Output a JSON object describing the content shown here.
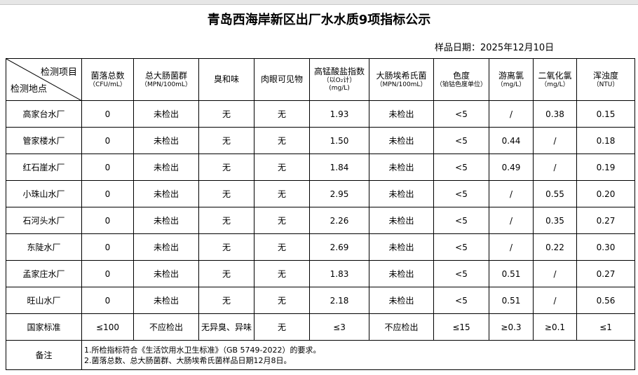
{
  "title": "青岛西海岸新区出厂水水质9项指标公示",
  "sample_date": "样品日期：2025年12月10日",
  "header": {
    "corner_top": "检测项目",
    "corner_bottom": "检测地点",
    "columns": [
      {
        "lines": [
          "菌落总数",
          "（CFU/mL）"
        ]
      },
      {
        "lines": [
          "总大肠菌群",
          "（MPN/100mL）"
        ]
      },
      {
        "lines": [
          "臭和味"
        ]
      },
      {
        "lines": [
          "肉眼可见物"
        ]
      },
      {
        "lines": [
          "高锰酸盐指数",
          "（以O₂计）",
          "(mg/L)"
        ]
      },
      {
        "lines": [
          "大肠埃希氏菌",
          "（MPN/100mL）"
        ]
      },
      {
        "lines": [
          "色度",
          "（铂钴色度单位）"
        ]
      },
      {
        "lines": [
          "游离氯",
          "（mg/L）"
        ]
      },
      {
        "lines": [
          "二氧化氯",
          "（mg/L）"
        ]
      },
      {
        "lines": [
          "浑浊度",
          "（NTU）"
        ]
      }
    ]
  },
  "table": {
    "rows": [
      [
        "高家台水厂",
        "0",
        "未检出",
        "无",
        "无",
        "1.93",
        "未检出",
        "<5",
        "/",
        "0.38",
        "0.15"
      ],
      [
        "管家楼水厂",
        "0",
        "未检出",
        "无",
        "无",
        "1.50",
        "未检出",
        "<5",
        "0.44",
        "/",
        "0.18"
      ],
      [
        "红石崖水厂",
        "0",
        "未检出",
        "无",
        "无",
        "1.84",
        "未检出",
        "<5",
        "0.49",
        "/",
        "0.19"
      ],
      [
        "小珠山水厂",
        "0",
        "未检出",
        "无",
        "无",
        "2.95",
        "未检出",
        "<5",
        "/",
        "0.55",
        "0.20"
      ],
      [
        "石河头水厂",
        "0",
        "未检出",
        "无",
        "无",
        "2.26",
        "未检出",
        "<5",
        "/",
        "0.35",
        "0.27"
      ],
      [
        "东陡水厂",
        "0",
        "未检出",
        "无",
        "无",
        "2.69",
        "未检出",
        "<5",
        "/",
        "0.22",
        "0.30"
      ],
      [
        "孟家庄水厂",
        "0",
        "未检出",
        "无",
        "无",
        "1.83",
        "未检出",
        "<5",
        "0.51",
        "/",
        "0.27"
      ],
      [
        "旺山水厂",
        "0",
        "未检出",
        "无",
        "无",
        "2.18",
        "未检出",
        "<5",
        "0.51",
        "/",
        "0.56"
      ],
      [
        "国家标准",
        "≤100",
        "不应检出",
        "无异臭、异味",
        "无",
        "≤3",
        "不应检出",
        "≤15",
        "≥0.3",
        "≥0.1",
        "≤1"
      ]
    ]
  },
  "remark": {
    "label": "备注",
    "lines": [
      "1.所检指标符合《生活饮用水卫生标准》（GB 5749-2022）的要求。",
      "2.菌落总数、总大肠菌群、大肠埃希氏菌样品日期12月8日。"
    ]
  }
}
